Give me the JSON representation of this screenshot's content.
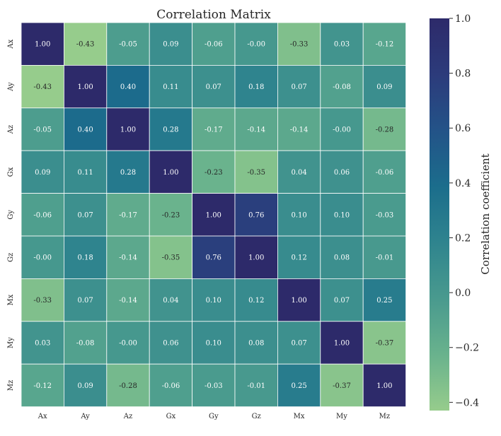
{
  "chart_data": {
    "type": "heatmap",
    "title": "Correlation Matrix",
    "x_labels": [
      "Ax",
      "Ay",
      "Az",
      "Gx",
      "Gy",
      "Gz",
      "Mx",
      "My",
      "Mz"
    ],
    "y_labels": [
      "Ax",
      "Ay",
      "Az",
      "Gx",
      "Gy",
      "Gz",
      "Mx",
      "My",
      "Mz"
    ],
    "values": [
      [
        1.0,
        -0.43,
        -0.05,
        0.09,
        -0.06,
        -0.0,
        -0.33,
        0.03,
        -0.12
      ],
      [
        -0.43,
        1.0,
        0.4,
        0.11,
        0.07,
        0.18,
        0.07,
        -0.08,
        0.09
      ],
      [
        -0.05,
        0.4,
        1.0,
        0.28,
        -0.17,
        -0.14,
        -0.14,
        -0.0,
        -0.28
      ],
      [
        0.09,
        0.11,
        0.28,
        1.0,
        -0.23,
        -0.35,
        0.04,
        0.06,
        -0.06
      ],
      [
        -0.06,
        0.07,
        -0.17,
        -0.23,
        1.0,
        0.76,
        0.1,
        0.1,
        -0.03
      ],
      [
        -0.0,
        0.18,
        -0.14,
        -0.35,
        0.76,
        1.0,
        0.12,
        0.08,
        -0.01
      ],
      [
        -0.33,
        0.07,
        -0.14,
        0.04,
        0.1,
        0.12,
        1.0,
        0.07,
        0.25
      ],
      [
        0.03,
        -0.08,
        -0.0,
        0.06,
        0.1,
        0.08,
        0.07,
        1.0,
        -0.37
      ],
      [
        -0.12,
        0.09,
        -0.28,
        -0.06,
        -0.03,
        -0.01,
        0.25,
        -0.37,
        1.0
      ]
    ],
    "value_labels": [
      [
        "1.00",
        "-0.43",
        "-0.05",
        "0.09",
        "-0.06",
        "-0.00",
        "-0.33",
        "0.03",
        "-0.12"
      ],
      [
        "-0.43",
        "1.00",
        "0.40",
        "0.11",
        "0.07",
        "0.18",
        "0.07",
        "-0.08",
        "0.09"
      ],
      [
        "-0.05",
        "0.40",
        "1.00",
        "0.28",
        "-0.17",
        "-0.14",
        "-0.14",
        "-0.00",
        "-0.28"
      ],
      [
        "0.09",
        "0.11",
        "0.28",
        "1.00",
        "-0.23",
        "-0.35",
        "0.04",
        "0.06",
        "-0.06"
      ],
      [
        "-0.06",
        "0.07",
        "-0.17",
        "-0.23",
        "1.00",
        "0.76",
        "0.10",
        "0.10",
        "-0.03"
      ],
      [
        "-0.00",
        "0.18",
        "-0.14",
        "-0.35",
        "0.76",
        "1.00",
        "0.12",
        "0.08",
        "-0.01"
      ],
      [
        "-0.33",
        "0.07",
        "-0.14",
        "0.04",
        "0.10",
        "0.12",
        "1.00",
        "0.07",
        "0.25"
      ],
      [
        "0.03",
        "-0.08",
        "-0.00",
        "0.06",
        "0.10",
        "0.08",
        "0.07",
        "1.00",
        "-0.37"
      ],
      [
        "-0.12",
        "0.09",
        "-0.28",
        "-0.06",
        "-0.03",
        "-0.01",
        "0.25",
        "-0.37",
        "1.00"
      ]
    ],
    "colorbar": {
      "label": "Correlation coefficient",
      "range": [
        -0.43,
        1.0
      ],
      "ticks": [
        1.0,
        0.8,
        0.6,
        0.4,
        0.2,
        0.0,
        -0.2,
        -0.4
      ],
      "tick_labels": [
        "1.0",
        "0.8",
        "0.6",
        "0.4",
        "0.2",
        "0.0",
        "−0.2",
        "−0.4"
      ]
    },
    "colormap": {
      "name": "crest",
      "stops": [
        "#96CC8C",
        "#69B28D",
        "#499A8E",
        "#2F848E",
        "#1B6D8C",
        "#235388",
        "#2C3B7B",
        "#2D2A6A"
      ]
    },
    "text_colors": {
      "light": "#ffffff",
      "dark": "#262626"
    }
  }
}
